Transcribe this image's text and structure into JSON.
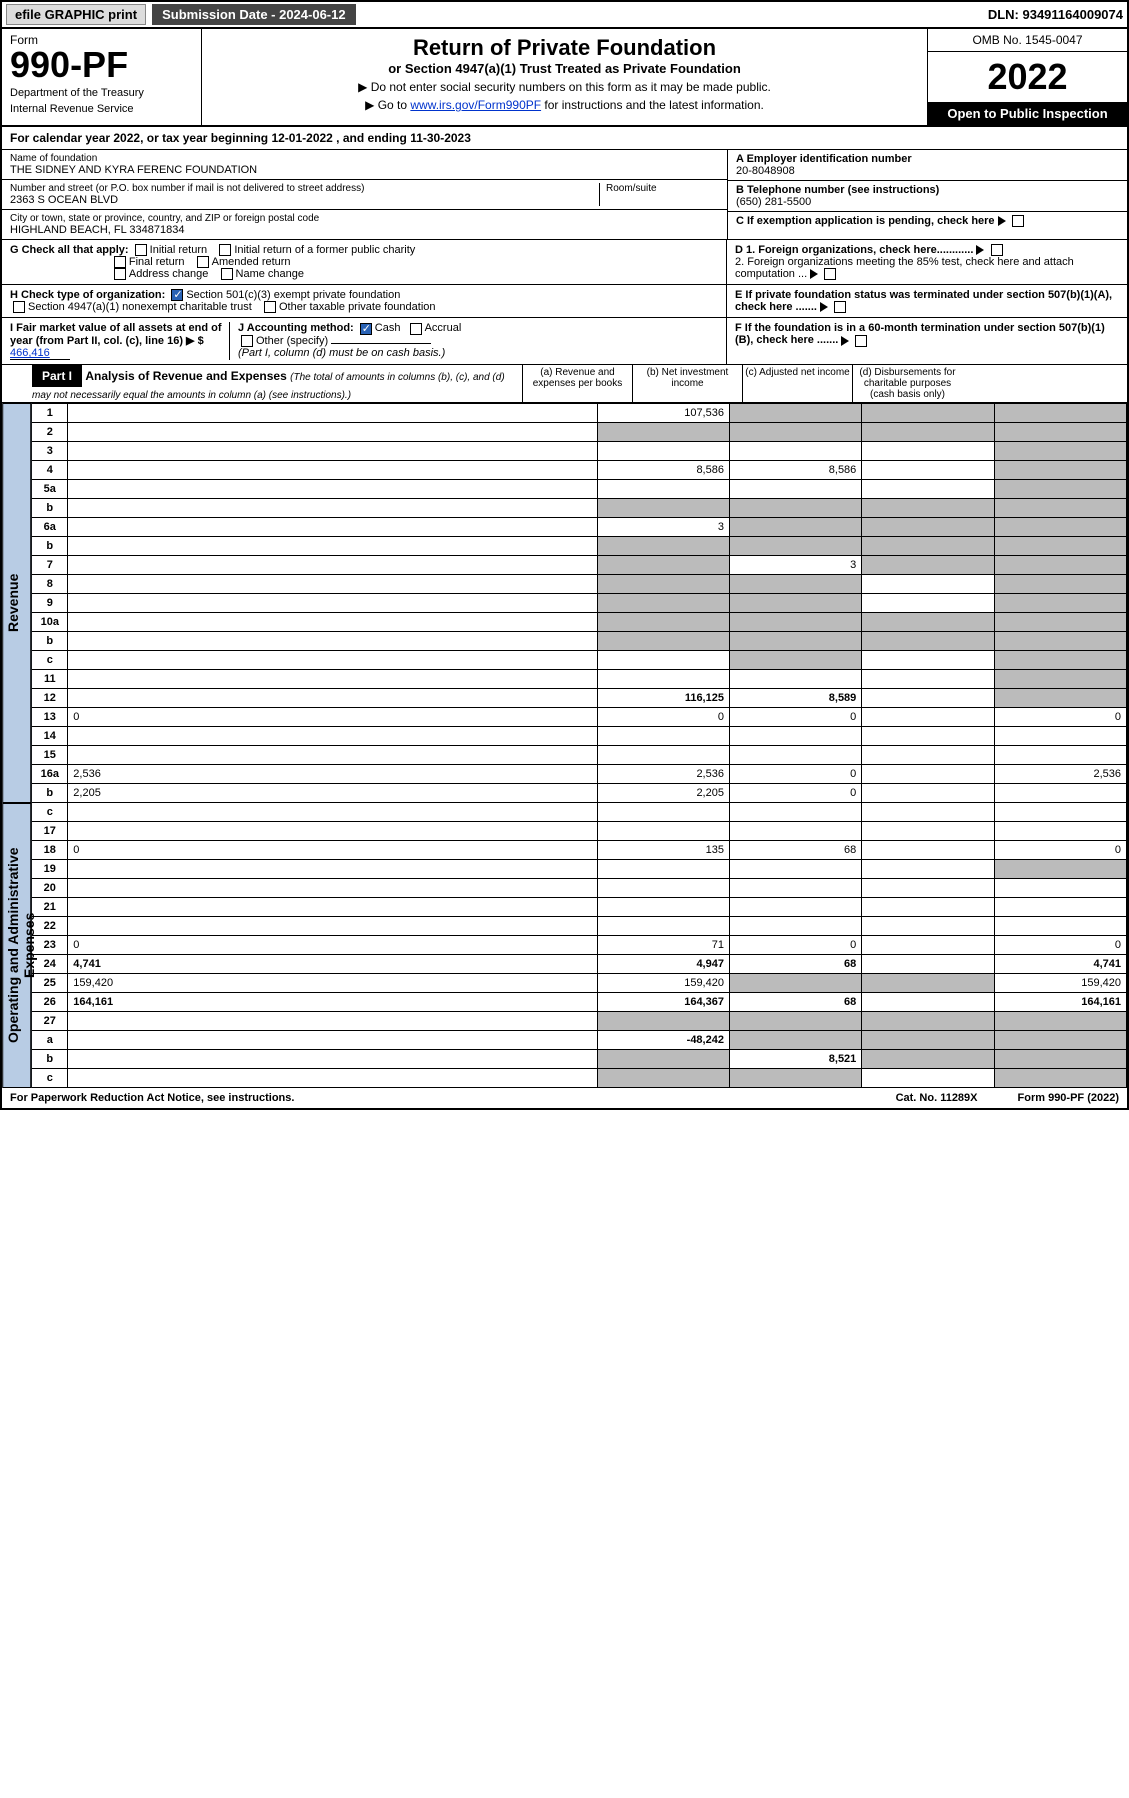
{
  "topbar": {
    "efile": "efile GRAPHIC print",
    "submission": "Submission Date - 2024-06-12",
    "dln": "DLN: 93491164009074"
  },
  "header": {
    "form_label": "Form",
    "form_number": "990-PF",
    "dept": "Department of the Treasury",
    "irs": "Internal Revenue Service",
    "title": "Return of Private Foundation",
    "subtitle": "or Section 4947(a)(1) Trust Treated as Private Foundation",
    "instr1": "▶ Do not enter social security numbers on this form as it may be made public.",
    "instr2_prefix": "▶ Go to ",
    "instr2_link": "www.irs.gov/Form990PF",
    "instr2_suffix": " for instructions and the latest information.",
    "omb": "OMB No. 1545-0047",
    "tax_year": "2022",
    "open_public": "Open to Public Inspection"
  },
  "year_line": {
    "prefix": "For calendar year 2022, or tax year beginning ",
    "begin": "12-01-2022",
    "mid": " , and ending ",
    "end": "11-30-2023"
  },
  "foundation": {
    "name_label": "Name of foundation",
    "name": "THE SIDNEY AND KYRA FERENC FOUNDATION",
    "addr_label": "Number and street (or P.O. box number if mail is not delivered to street address)",
    "addr": "2363 S OCEAN BLVD",
    "room_label": "Room/suite",
    "city_label": "City or town, state or province, country, and ZIP or foreign postal code",
    "city": "HIGHLAND BEACH, FL  334871834",
    "ein_label": "A Employer identification number",
    "ein": "20-8048908",
    "phone_label": "B Telephone number (see instructions)",
    "phone": "(650) 281-5500",
    "c_label": "C If exemption application is pending, check here",
    "d1_label": "D 1. Foreign organizations, check here............",
    "d2_label": "2. Foreign organizations meeting the 85% test, check here and attach computation ...",
    "e_label": "E  If private foundation status was terminated under section 507(b)(1)(A), check here .......",
    "f_label": "F  If the foundation is in a 60-month termination under section 507(b)(1)(B), check here .......",
    "g_label": "G Check all that apply:",
    "g_opts": [
      "Initial return",
      "Initial return of a former public charity",
      "Final return",
      "Amended return",
      "Address change",
      "Name change"
    ],
    "h_label": "H Check type of organization:",
    "h_501c3": "Section 501(c)(3) exempt private foundation",
    "h_4947": "Section 4947(a)(1) nonexempt charitable trust",
    "h_other": "Other taxable private foundation",
    "i_label": "I Fair market value of all assets at end of year (from Part II, col. (c), line 16) ▶ $",
    "i_value": "466,416",
    "j_label": "J Accounting method:",
    "j_cash": "Cash",
    "j_accrual": "Accrual",
    "j_other": "Other (specify)",
    "j_note": "(Part I, column (d) must be on cash basis.)"
  },
  "part1": {
    "label": "Part I",
    "title": "Analysis of Revenue and Expenses",
    "note": "(The total of amounts in columns (b), (c), and (d) may not necessarily equal the amounts in column (a) (see instructions).)",
    "col_a": "(a)  Revenue and expenses per books",
    "col_b": "(b)  Net investment income",
    "col_c": "(c)  Adjusted net income",
    "col_d": "(d)  Disbursements for charitable purposes (cash basis only)"
  },
  "vert": {
    "revenue": "Revenue",
    "expenses": "Operating and Administrative Expenses"
  },
  "rows": [
    {
      "n": "1",
      "d": "",
      "a": "107,536",
      "b": "",
      "c": "",
      "grey_b": true,
      "grey_c": true,
      "grey_d": true
    },
    {
      "n": "2",
      "d": "",
      "a": "",
      "b": "",
      "c": "",
      "grey_a": true,
      "grey_b": true,
      "grey_c": true,
      "grey_d": true
    },
    {
      "n": "3",
      "d": "",
      "a": "",
      "b": "",
      "c": "",
      "grey_d": true
    },
    {
      "n": "4",
      "d": "",
      "a": "8,586",
      "b": "8,586",
      "c": "",
      "grey_d": true
    },
    {
      "n": "5a",
      "d": "",
      "a": "",
      "b": "",
      "c": "",
      "grey_d": true
    },
    {
      "n": "b",
      "d": "",
      "a": "",
      "b": "",
      "c": "",
      "grey_a": true,
      "grey_b": true,
      "grey_c": true,
      "grey_d": true
    },
    {
      "n": "6a",
      "d": "",
      "a": "3",
      "b": "",
      "c": "",
      "grey_b": true,
      "grey_c": true,
      "grey_d": true
    },
    {
      "n": "b",
      "d": "",
      "a": "",
      "b": "",
      "c": "",
      "grey_a": true,
      "grey_b": true,
      "grey_c": true,
      "grey_d": true
    },
    {
      "n": "7",
      "d": "",
      "a": "",
      "b": "3",
      "c": "",
      "grey_a": true,
      "grey_c": true,
      "grey_d": true
    },
    {
      "n": "8",
      "d": "",
      "a": "",
      "b": "",
      "c": "",
      "grey_a": true,
      "grey_b": true,
      "grey_d": true
    },
    {
      "n": "9",
      "d": "",
      "a": "",
      "b": "",
      "c": "",
      "grey_a": true,
      "grey_b": true,
      "grey_d": true
    },
    {
      "n": "10a",
      "d": "",
      "a": "",
      "b": "",
      "c": "",
      "grey_a": true,
      "grey_b": true,
      "grey_c": true,
      "grey_d": true
    },
    {
      "n": "b",
      "d": "",
      "a": "",
      "b": "",
      "c": "",
      "grey_a": true,
      "grey_b": true,
      "grey_c": true,
      "grey_d": true
    },
    {
      "n": "c",
      "d": "",
      "a": "",
      "b": "",
      "c": "",
      "grey_b": true,
      "grey_d": true
    },
    {
      "n": "11",
      "d": "",
      "a": "",
      "b": "",
      "c": "",
      "grey_d": true
    },
    {
      "n": "12",
      "d": "",
      "a": "116,125",
      "b": "8,589",
      "c": "",
      "grey_d": true,
      "bold": true
    },
    {
      "n": "13",
      "d": "0",
      "a": "0",
      "b": "0",
      "c": ""
    },
    {
      "n": "14",
      "d": "",
      "a": "",
      "b": "",
      "c": ""
    },
    {
      "n": "15",
      "d": "",
      "a": "",
      "b": "",
      "c": ""
    },
    {
      "n": "16a",
      "d": "2,536",
      "a": "2,536",
      "b": "0",
      "c": ""
    },
    {
      "n": "b",
      "d": "2,205",
      "a": "2,205",
      "b": "0",
      "c": ""
    },
    {
      "n": "c",
      "d": "",
      "a": "",
      "b": "",
      "c": ""
    },
    {
      "n": "17",
      "d": "",
      "a": "",
      "b": "",
      "c": ""
    },
    {
      "n": "18",
      "d": "0",
      "a": "135",
      "b": "68",
      "c": ""
    },
    {
      "n": "19",
      "d": "",
      "a": "",
      "b": "",
      "c": "",
      "grey_d": true
    },
    {
      "n": "20",
      "d": "",
      "a": "",
      "b": "",
      "c": ""
    },
    {
      "n": "21",
      "d": "",
      "a": "",
      "b": "",
      "c": ""
    },
    {
      "n": "22",
      "d": "",
      "a": "",
      "b": "",
      "c": ""
    },
    {
      "n": "23",
      "d": "0",
      "a": "71",
      "b": "0",
      "c": ""
    },
    {
      "n": "24",
      "d": "4,741",
      "a": "4,947",
      "b": "68",
      "c": "",
      "bold": true
    },
    {
      "n": "25",
      "d": "159,420",
      "a": "159,420",
      "b": "",
      "c": "",
      "grey_b": true,
      "grey_c": true
    },
    {
      "n": "26",
      "d": "164,161",
      "a": "164,367",
      "b": "68",
      "c": "",
      "bold": true
    },
    {
      "n": "27",
      "d": "",
      "a": "",
      "b": "",
      "c": "",
      "grey_a": true,
      "grey_b": true,
      "grey_c": true,
      "grey_d": true
    },
    {
      "n": "a",
      "d": "",
      "a": "-48,242",
      "b": "",
      "c": "",
      "grey_b": true,
      "grey_c": true,
      "grey_d": true,
      "bold": true
    },
    {
      "n": "b",
      "d": "",
      "a": "",
      "b": "8,521",
      "c": "",
      "grey_a": true,
      "grey_c": true,
      "grey_d": true,
      "bold": true
    },
    {
      "n": "c",
      "d": "",
      "a": "",
      "b": "",
      "c": "",
      "grey_a": true,
      "grey_b": true,
      "grey_d": true,
      "bold": true
    }
  ],
  "footer": {
    "pra": "For Paperwork Reduction Act Notice, see instructions.",
    "cat": "Cat. No. 11289X",
    "form": "Form 990-PF (2022)"
  }
}
